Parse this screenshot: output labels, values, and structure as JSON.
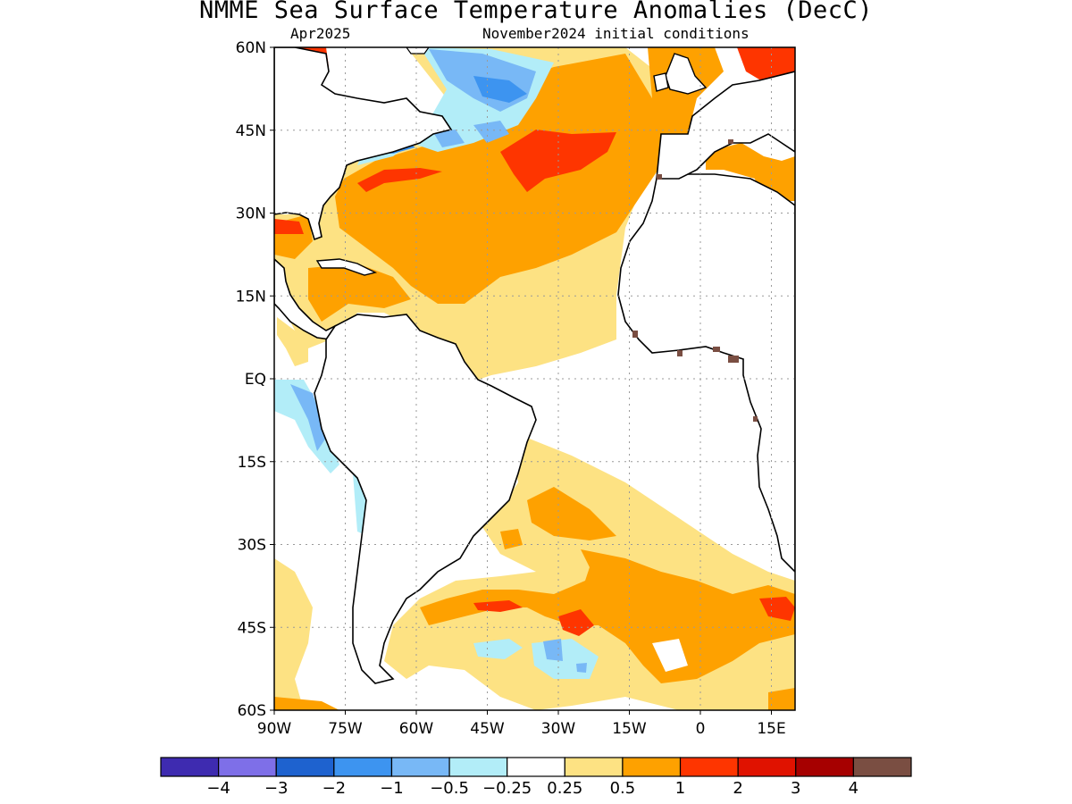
{
  "title": "NMME Sea Surface Temperature Anomalies (DecC)",
  "valid_month": "Apr2025",
  "initial_conditions": "November2024 initial conditions",
  "axes": {
    "lat_labels": [
      "60N",
      "45N",
      "30N",
      "15N",
      "EQ",
      "15S",
      "30S",
      "45S",
      "60S"
    ],
    "lat_values": [
      60,
      45,
      30,
      15,
      0,
      -15,
      -30,
      -45,
      -60
    ],
    "lon_labels": [
      "90W",
      "75W",
      "60W",
      "45W",
      "30W",
      "15W",
      "0",
      "15E"
    ],
    "lon_values": [
      -90,
      -75,
      -60,
      -45,
      -30,
      -15,
      0,
      15
    ]
  },
  "map_extent": {
    "lon_min": -90,
    "lon_max": 20,
    "lat_min": -60,
    "lat_max": 60
  },
  "colorbar": {
    "colors": [
      "#3e2bb0",
      "#7e6fe8",
      "#1e62cf",
      "#3d94f0",
      "#78b8f6",
      "#b2edf8",
      "#ffffff",
      "#fde283",
      "#fea100",
      "#fe3500",
      "#e01200",
      "#a60000",
      "#7a4e42"
    ],
    "labels": [
      "−4",
      "−3",
      "−2",
      "−1",
      "−0.5",
      "−0.25",
      "0.25",
      "0.5",
      "1",
      "2",
      "3",
      "4"
    ]
  },
  "anomaly_colors": {
    "light_orange": "#fde283",
    "orange": "#fea100",
    "red": "#fe3500",
    "brown": "#7a4e42",
    "light_blue": "#b2edf8",
    "blue": "#78b8f6",
    "mid_blue": "#3d94f0"
  }
}
